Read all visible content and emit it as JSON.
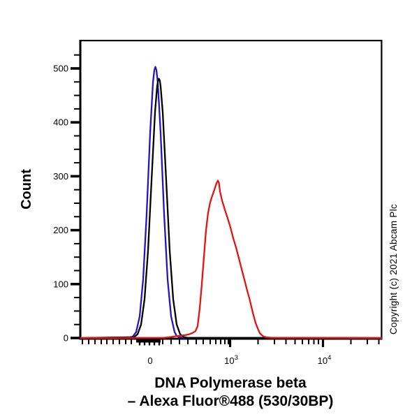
{
  "figure": {
    "ylabel": "Count",
    "title_line1": "DNA Polymerase beta",
    "title_line2": "– Alexa Fluor®488 (530/30BP)",
    "copyright": "Copyright (c) 2021 Abcam Plc"
  },
  "chart_data": {
    "type": "line",
    "subtype": "flow-cytometry-histogram",
    "title": "DNA Polymerase beta – Alexa Fluor®488 (530/30BP)",
    "ylabel": "Count",
    "xscale": "biexponential-log",
    "x_units": "display_px",
    "ylim": [
      0,
      553
    ],
    "yticks": [
      0,
      100,
      200,
      300,
      400,
      500
    ],
    "y_minor_step": 25,
    "xticks": [
      {
        "text": "0",
        "sup": ""
      },
      {
        "text": "10",
        "sup": "3"
      },
      {
        "text": "10",
        "sup": "4"
      }
    ],
    "grid": false,
    "legend": false,
    "series": [
      {
        "name": "blue-curve",
        "color": "#2016c8",
        "peak_count": 503,
        "points": [
          [
            185,
            1
          ],
          [
            190,
            2.5
          ],
          [
            195,
            11
          ],
          [
            200,
            40
          ],
          [
            205,
            109
          ],
          [
            210,
            230
          ],
          [
            215,
            380
          ],
          [
            219,
            473
          ],
          [
            221,
            497
          ],
          [
            222.5,
            503
          ],
          [
            224,
            497
          ],
          [
            226,
            473
          ],
          [
            230,
            380
          ],
          [
            235,
            230
          ],
          [
            240,
            109
          ],
          [
            245,
            40
          ],
          [
            250,
            11
          ],
          [
            253,
            4
          ],
          [
            257,
            1.5
          ],
          [
            262,
            0.5
          ]
        ]
      },
      {
        "name": "black-curve",
        "color": "#000000",
        "peak_count": 481,
        "points": [
          [
            192,
            1.5
          ],
          [
            197,
            7
          ],
          [
            202,
            25
          ],
          [
            207,
            72
          ],
          [
            212,
            162
          ],
          [
            217,
            292
          ],
          [
            222,
            419
          ],
          [
            225,
            467
          ],
          [
            226.5,
            478
          ],
          [
            227.5,
            481
          ],
          [
            228.8,
            478
          ],
          [
            230,
            467
          ],
          [
            233,
            419
          ],
          [
            238,
            292
          ],
          [
            243,
            162
          ],
          [
            248,
            72
          ],
          [
            253,
            25
          ],
          [
            258,
            7
          ],
          [
            263,
            2
          ],
          [
            268,
            0.5
          ]
        ]
      },
      {
        "name": "red-curve",
        "color": "#e8120f",
        "peak_count": 292,
        "points": [
          [
            235,
            0.5
          ],
          [
            245,
            2
          ],
          [
            253,
            3.5
          ],
          [
            260,
            4.5
          ],
          [
            266,
            5.5
          ],
          [
            271,
            7
          ],
          [
            275,
            9
          ],
          [
            278,
            11
          ],
          [
            280,
            13
          ],
          [
            283,
            22
          ],
          [
            286,
            55
          ],
          [
            289,
            100
          ],
          [
            292,
            150
          ],
          [
            295,
            200
          ],
          [
            298,
            232
          ],
          [
            301,
            252
          ],
          [
            304,
            264
          ],
          [
            307,
            275
          ],
          [
            310,
            287
          ],
          [
            312,
            292
          ],
          [
            313.5,
            288
          ],
          [
            315,
            272
          ],
          [
            318,
            255
          ],
          [
            322,
            238
          ],
          [
            326,
            222
          ],
          [
            330,
            205
          ],
          [
            334,
            185
          ],
          [
            338,
            168
          ],
          [
            342,
            148
          ],
          [
            346,
            128
          ],
          [
            350,
            108
          ],
          [
            354,
            88
          ],
          [
            357,
            74
          ],
          [
            360,
            58
          ],
          [
            363,
            42
          ],
          [
            366,
            28
          ],
          [
            369,
            18
          ],
          [
            372,
            9
          ],
          [
            375,
            5
          ],
          [
            378,
            2.5
          ],
          [
            383,
            1
          ],
          [
            390,
            0.5
          ]
        ]
      }
    ]
  }
}
